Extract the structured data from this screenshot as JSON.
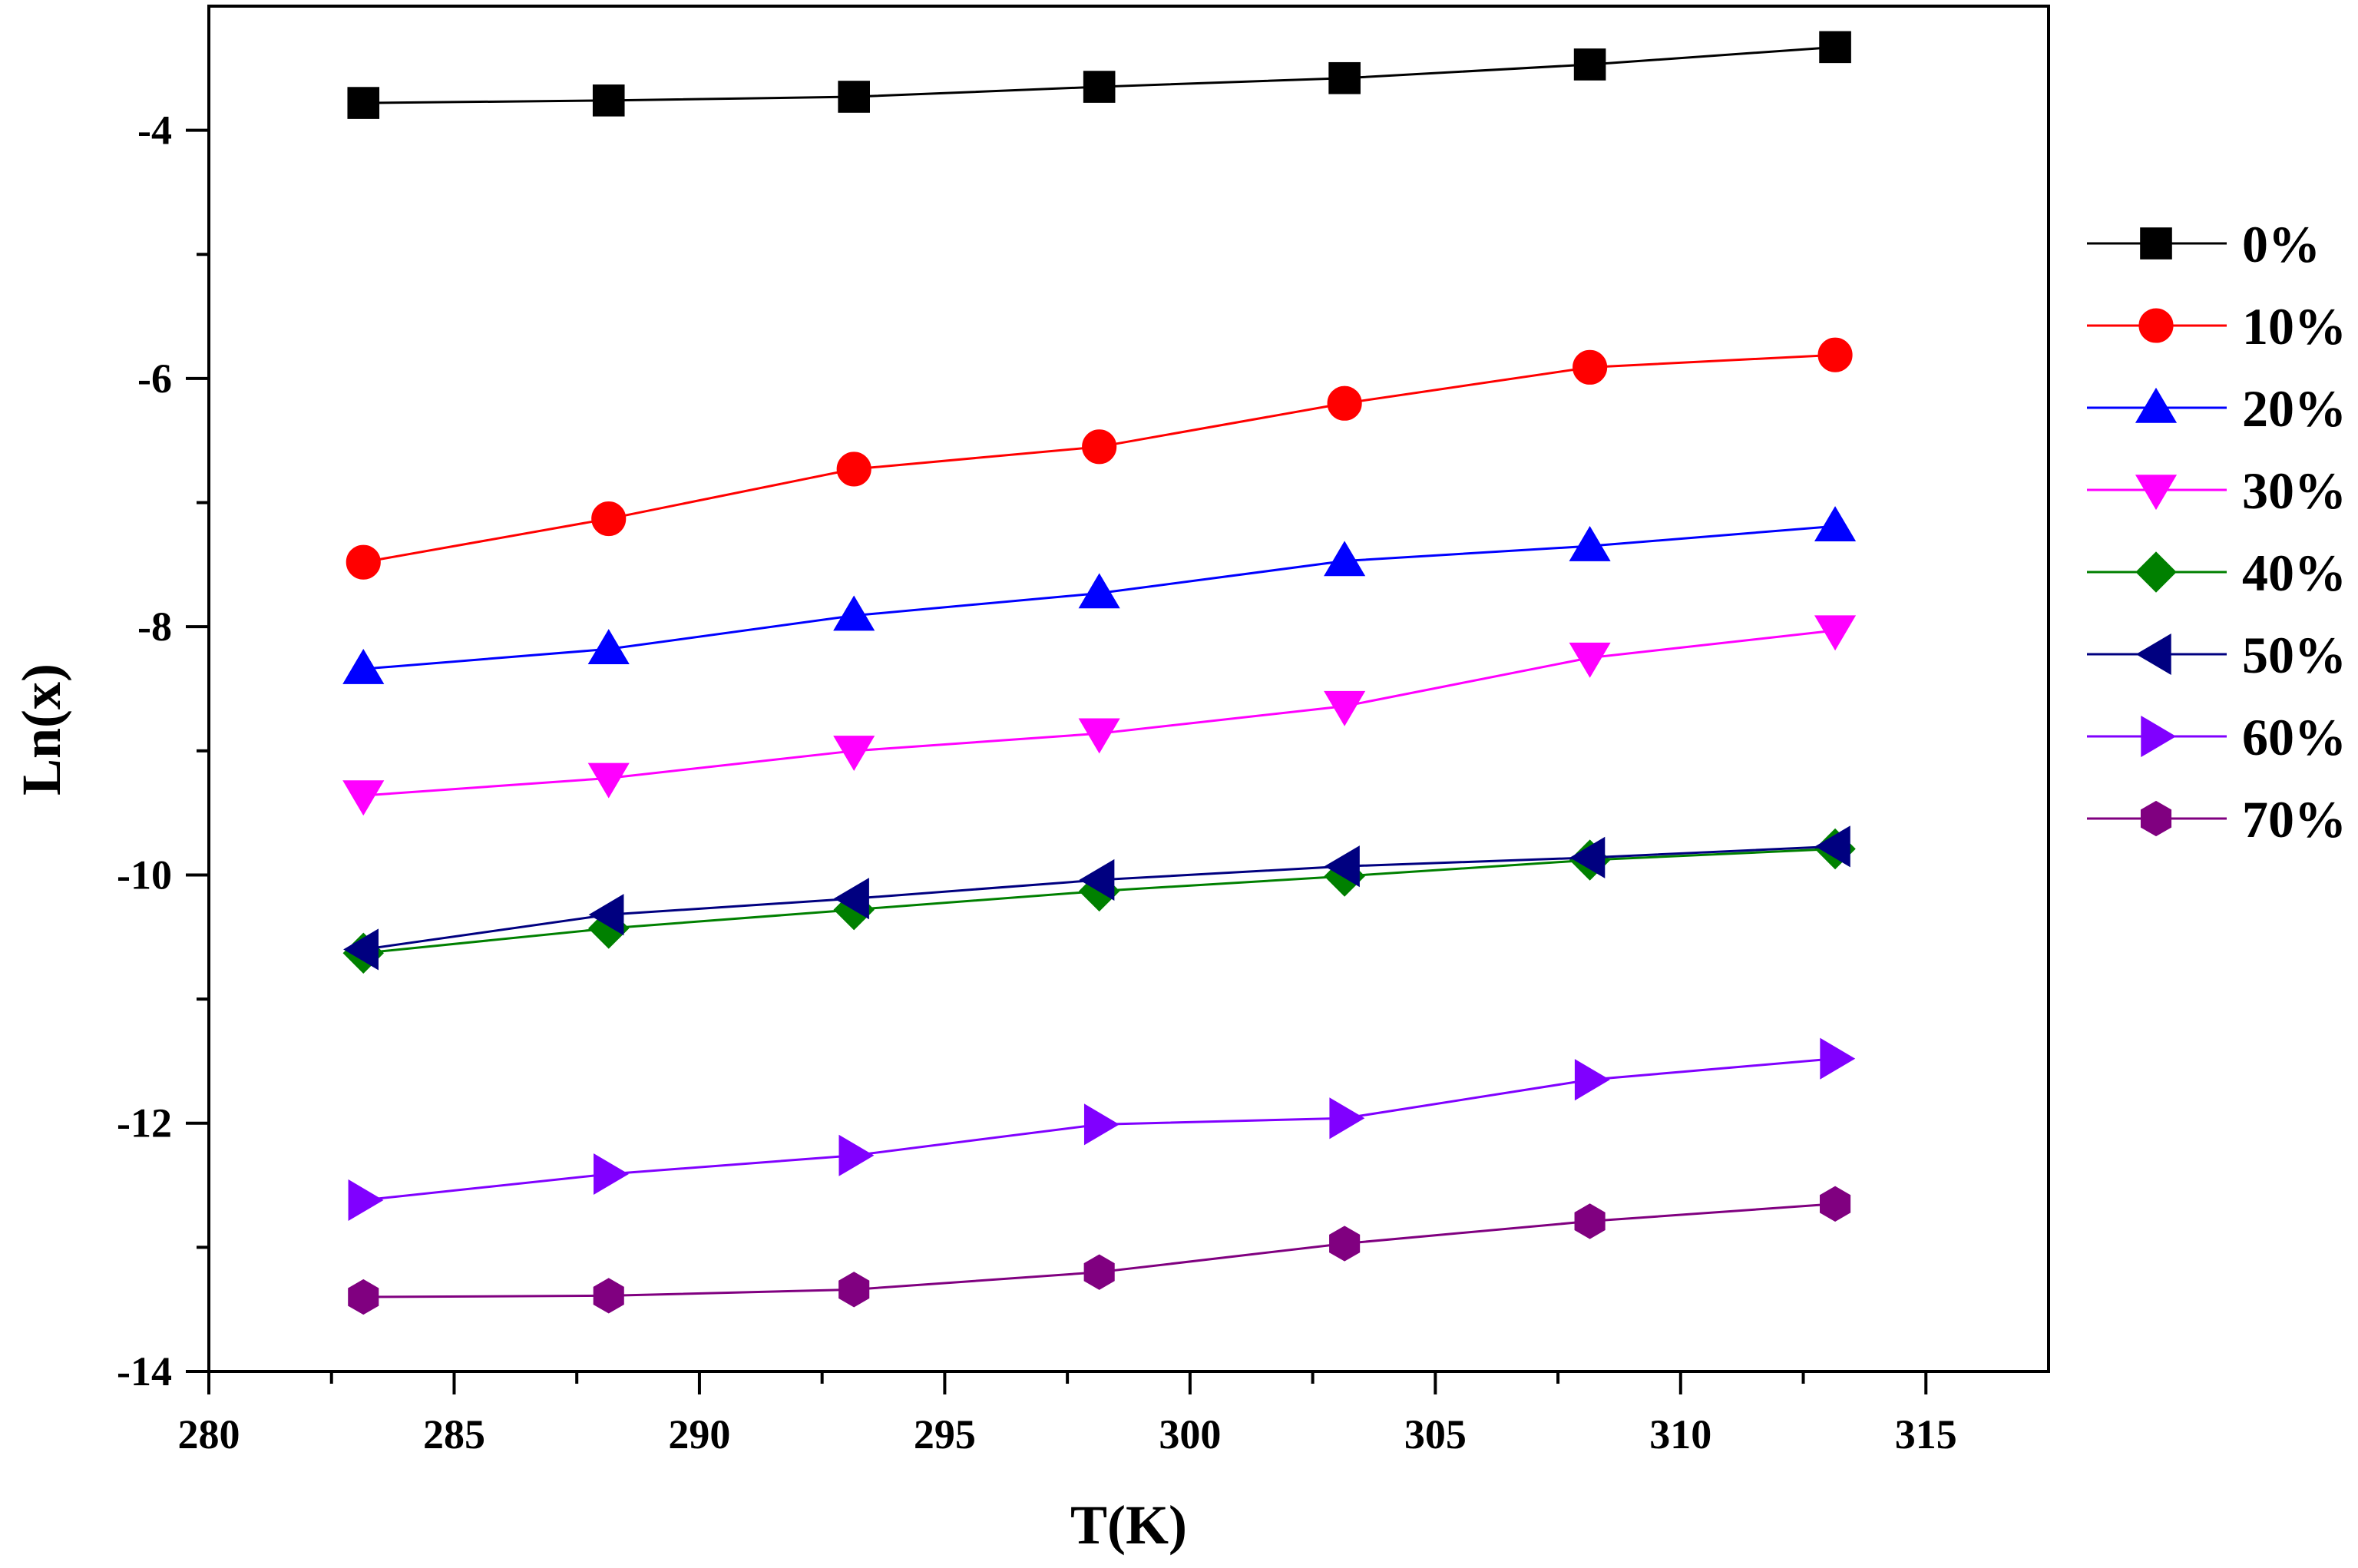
{
  "chart_data": {
    "type": "line",
    "title": "",
    "xlabel": "T(K)",
    "ylabel": "Ln(x)",
    "xlim": [
      280,
      317.5
    ],
    "ylim": [
      -14,
      -3.0
    ],
    "xticks": [
      280,
      285,
      290,
      295,
      300,
      305,
      310,
      315
    ],
    "yticks": [
      -14,
      -12,
      -10,
      -8,
      -6,
      -4
    ],
    "x": [
      283.15,
      288.15,
      293.15,
      298.15,
      303.15,
      308.15,
      313.15
    ],
    "legend_position": "right",
    "grid": false,
    "series": [
      {
        "name": "0%",
        "color": "#000000",
        "marker": "square",
        "values": [
          -3.78,
          -3.76,
          -3.73,
          -3.65,
          -3.58,
          -3.47,
          -3.33
        ]
      },
      {
        "name": "10%",
        "color": "#ff0000",
        "marker": "circle",
        "values": [
          -7.48,
          -7.13,
          -6.73,
          -6.55,
          -6.2,
          -5.91,
          -5.81
        ]
      },
      {
        "name": "20%",
        "color": "#0000ff",
        "marker": "triangle-up",
        "values": [
          -8.34,
          -8.18,
          -7.91,
          -7.73,
          -7.47,
          -7.35,
          -7.19
        ]
      },
      {
        "name": "30%",
        "color": "#ff00ff",
        "marker": "triangle-down",
        "values": [
          -9.36,
          -9.22,
          -9.0,
          -8.86,
          -8.64,
          -8.25,
          -8.03
        ]
      },
      {
        "name": "40%",
        "color": "#008000",
        "marker": "diamond",
        "values": [
          -10.63,
          -10.43,
          -10.28,
          -10.13,
          -10.01,
          -9.88,
          -9.79
        ]
      },
      {
        "name": "50%",
        "color": "#000080",
        "marker": "triangle-left",
        "values": [
          -10.6,
          -10.32,
          -10.19,
          -10.04,
          -9.93,
          -9.86,
          -9.77
        ]
      },
      {
        "name": "60%",
        "color": "#8000ff",
        "marker": "triangle-right",
        "values": [
          -12.62,
          -12.41,
          -12.26,
          -12.01,
          -11.96,
          -11.65,
          -11.48
        ]
      },
      {
        "name": "70%",
        "color": "#800080",
        "marker": "hexagon",
        "values": [
          -13.4,
          -13.39,
          -13.34,
          -13.2,
          -12.97,
          -12.79,
          -12.65
        ]
      }
    ]
  }
}
